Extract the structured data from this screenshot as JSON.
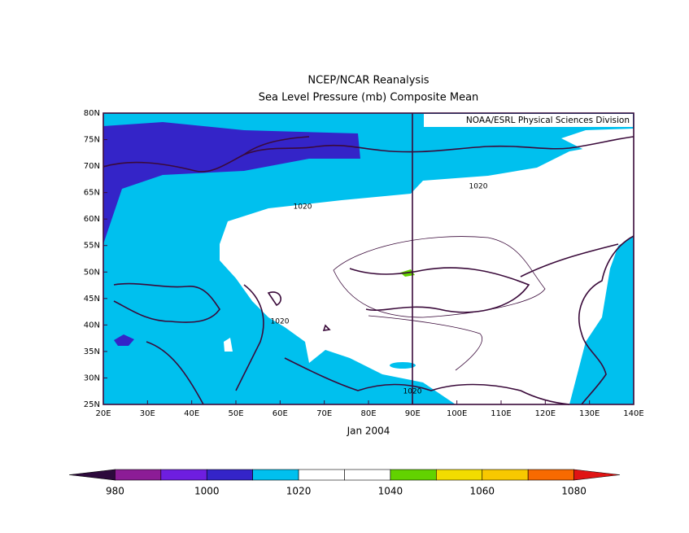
{
  "header": {
    "title": "NCEP/NCAR Reanalysis",
    "subtitle": "Sea Level Pressure (mb) Composite Mean"
  },
  "map": {
    "credit": "NOAA/ESRL Physical Sciences Division",
    "lat_ticks": [
      "80N",
      "75N",
      "70N",
      "65N",
      "60N",
      "55N",
      "50N",
      "45N",
      "40N",
      "35N",
      "30N",
      "25N"
    ],
    "lon_ticks": [
      "20E",
      "30E",
      "40E",
      "50E",
      "60E",
      "70E",
      "80E",
      "90E",
      "100E",
      "110E",
      "120E",
      "130E",
      "140E"
    ],
    "contour_labels": [
      "1020",
      "1020",
      "1020",
      "1020"
    ],
    "date": "Jan 2004"
  },
  "colorbar": {
    "colors": [
      "#2d0a3c",
      "#8c1c96",
      "#6e1ee0",
      "#3424c8",
      "#00c0ee",
      "#ffffff",
      "#ffffff",
      "#62d200",
      "#f2dc00",
      "#f8c800",
      "#f86a00",
      "#e01414"
    ],
    "labels": [
      "980",
      "1000",
      "1020",
      "1040",
      "1060",
      "1080"
    ]
  }
}
